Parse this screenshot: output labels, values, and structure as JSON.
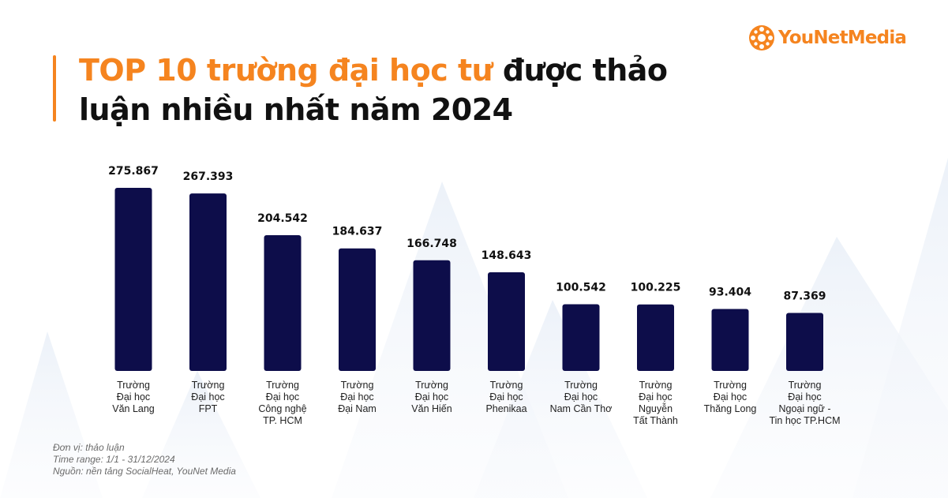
{
  "header": {
    "title_highlight": "TOP 10 trường đại học tư",
    "title_rest_line1": " được thảo",
    "title_line2": "luận nhiều nhất năm 2024"
  },
  "logo": {
    "text_a": "YouNet",
    "text_b": "Media",
    "brand_color": "#f5841f"
  },
  "footer": {
    "unit": "Đơn vị: thảo luận",
    "time_range": "Time range: 1/1 - 31/12/2024",
    "source": "Nguồn: nền tảng SocialHeat, YouNet Media"
  },
  "colors": {
    "bar": "#0d0d4a",
    "accent": "#f5841f",
    "text": "#111111"
  },
  "chart_data": {
    "type": "bar",
    "categories": [
      [
        "Trường",
        "Đại học",
        "Văn Lang"
      ],
      [
        "Trường",
        "Đại học",
        "FPT"
      ],
      [
        "Trường",
        "Đại học",
        "Công nghệ",
        "TP. HCM"
      ],
      [
        "Trường",
        "Đại học",
        "Đại Nam"
      ],
      [
        "Trường",
        "Đại học",
        "Văn Hiến"
      ],
      [
        "Trường",
        "Đại học",
        "Phenikaa"
      ],
      [
        "Trường",
        "Đại học",
        "Nam Cần Thơ"
      ],
      [
        "Trường",
        "Đại học",
        "Nguyễn",
        "Tất Thành"
      ],
      [
        "Trường",
        "Đại học",
        "Thăng Long"
      ],
      [
        "Trường",
        "Đại học",
        "Ngoại ngữ -",
        "Tin học TP.HCM"
      ]
    ],
    "values": [
      275867,
      267393,
      204542,
      184637,
      166748,
      148643,
      100542,
      100225,
      93404,
      87369
    ],
    "value_labels": [
      "275.867",
      "267.393",
      "204.542",
      "184.637",
      "166.748",
      "148.643",
      "100.542",
      "100.225",
      "93.404",
      "87.369"
    ],
    "ylim": [
      0,
      275867
    ],
    "grid": false,
    "legend": "none"
  }
}
